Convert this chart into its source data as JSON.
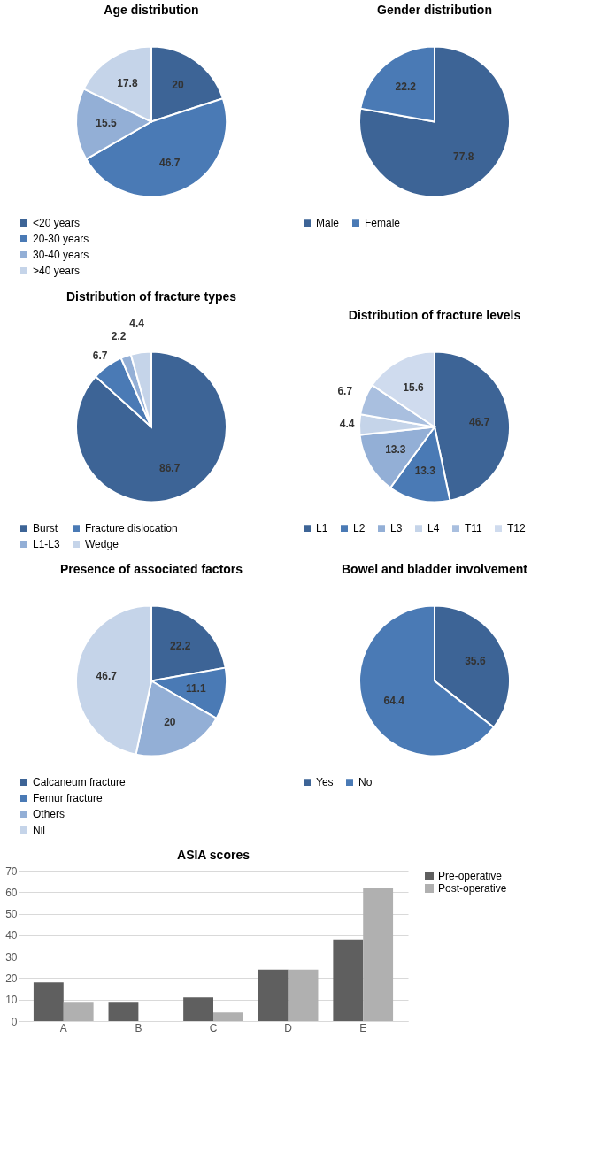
{
  "chart_data": [
    {
      "type": "pie",
      "title": "Age distribution",
      "categories": [
        "<20 years",
        "20-30 years",
        "30-40 years",
        ">40 years"
      ],
      "values": [
        20,
        46.7,
        15.5,
        17.8
      ],
      "colors": [
        "#3d6496",
        "#4a7ab5",
        "#93afd6",
        "#c5d4e9"
      ],
      "data_labels": true,
      "legend": "bottom left"
    },
    {
      "type": "pie",
      "title": "Gender distribution",
      "categories": [
        "Male",
        "Female"
      ],
      "values": [
        77.8,
        22.2
      ],
      "colors": [
        "#3d6496",
        "#4a7ab5"
      ],
      "data_labels": true,
      "legend": "bottom"
    },
    {
      "type": "pie",
      "title": "Distribution of fracture types",
      "categories": [
        "Burst",
        "Fracture dislocation",
        "L1-L3",
        "Wedge"
      ],
      "values": [
        86.7,
        6.7,
        2.2,
        4.4
      ],
      "colors": [
        "#3d6496",
        "#4a7ab5",
        "#93afd6",
        "#c5d4e9"
      ],
      "data_labels": true,
      "legend": "bottom"
    },
    {
      "type": "pie",
      "title": "Distribution of fracture levels",
      "categories": [
        "L1",
        "L2",
        "L3",
        "L4",
        "T11",
        "T12"
      ],
      "values": [
        46.7,
        13.3,
        13.3,
        4.4,
        6.7,
        15.6
      ],
      "colors": [
        "#3d6496",
        "#4a7ab5",
        "#93afd6",
        "#c5d4e9",
        "#a9bfdf",
        "#cfdbee"
      ],
      "data_labels": true,
      "legend": "bottom"
    },
    {
      "type": "pie",
      "title": "Presence of associated factors",
      "categories": [
        "Calcaneum fracture",
        "Femur fracture",
        "Others",
        "Nil"
      ],
      "values": [
        22.2,
        11.1,
        20,
        46.7
      ],
      "colors": [
        "#3d6496",
        "#4a7ab5",
        "#93afd6",
        "#c5d4e9"
      ],
      "data_labels": true,
      "legend": "bottom left"
    },
    {
      "type": "pie",
      "title": "Bowel and bladder involvement",
      "categories": [
        "Yes",
        "No"
      ],
      "values": [
        35.6,
        64.4
      ],
      "colors": [
        "#3d6496",
        "#4a7ab5"
      ],
      "data_labels": true,
      "legend": "bottom"
    },
    {
      "type": "bar",
      "title": "ASIA scores",
      "categories": [
        "A",
        "B",
        "C",
        "D",
        "E"
      ],
      "ylim": [
        0,
        70
      ],
      "yticks": [
        0,
        10,
        20,
        30,
        40,
        50,
        60,
        70
      ],
      "grid": "y",
      "legend": "right",
      "series": [
        {
          "name": "Pre-operative",
          "color": "#5f5f5f",
          "values": [
            18,
            9,
            11,
            24,
            38
          ]
        },
        {
          "name": "Post-operative",
          "color": "#b0b0b0",
          "values": [
            9,
            0,
            4,
            24,
            62
          ]
        }
      ]
    }
  ]
}
